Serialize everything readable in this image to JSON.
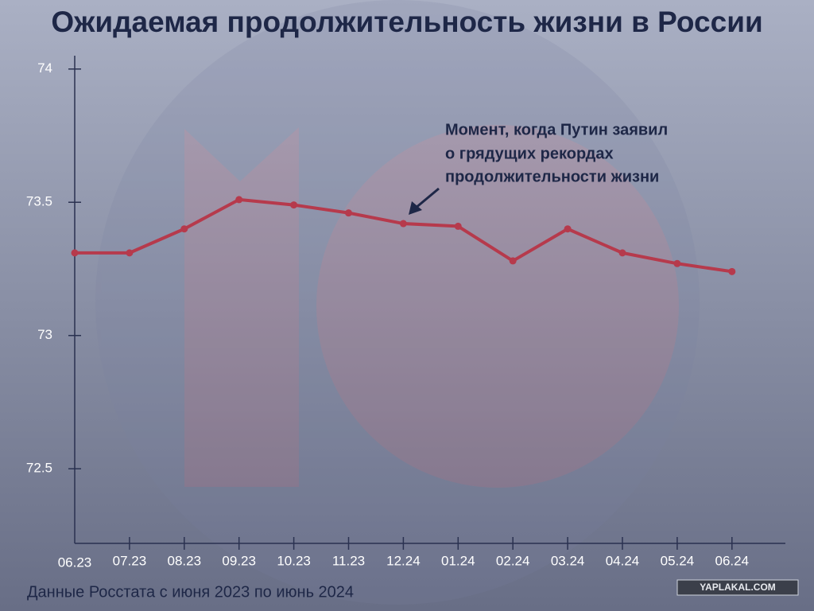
{
  "chart_data": {
    "type": "line",
    "title": "Ожидаемая продолжительность жизни в России",
    "annotation": [
      "Момент, когда Путин заявил",
      "о грядущих рекордах",
      "продолжительности жизни"
    ],
    "source": "Данные Росстата с июня 2023 по июнь 2024",
    "watermark": "YAPLAKAL.COM",
    "categories": [
      "06.23",
      "07.23",
      "08.23",
      "09.23",
      "10.23",
      "11.23",
      "12.24",
      "01.24",
      "02.24",
      "03.24",
      "04.24",
      "05.24",
      "06.24"
    ],
    "series": [
      {
        "color": "#b63a4c",
        "values": [
          73.31,
          73.31,
          73.4,
          73.51,
          73.49,
          73.46,
          73.42,
          73.41,
          73.28,
          73.4,
          73.31,
          73.27,
          73.24
        ]
      }
    ],
    "ylim": [
      72.22,
      74.05
    ],
    "yticks": [
      72.5,
      73,
      73.5,
      74
    ]
  }
}
